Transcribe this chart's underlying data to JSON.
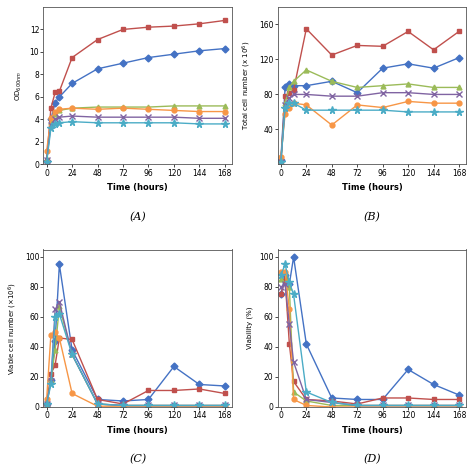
{
  "time": [
    0,
    4,
    8,
    12,
    24,
    48,
    72,
    96,
    120,
    144,
    168
  ],
  "panel_A": {
    "ylabel": "OD$_{600nm}$",
    "xlabel": "Time (hours)",
    "label": "(A)",
    "ylim": [
      0,
      14
    ],
    "yticks": [
      0,
      2,
      4,
      6,
      8,
      10,
      12
    ],
    "series": [
      {
        "color": "#4472C4",
        "marker": "D",
        "data": [
          0.3,
          4.0,
          5.5,
          6.0,
          7.2,
          8.5,
          9.0,
          9.5,
          9.8,
          10.1,
          10.3
        ]
      },
      {
        "color": "#C0504D",
        "marker": "s",
        "data": [
          0.3,
          5.0,
          6.4,
          6.5,
          9.5,
          11.1,
          12.0,
          12.2,
          12.3,
          12.5,
          12.8
        ]
      },
      {
        "color": "#9BBB59",
        "marker": "^",
        "data": [
          0.5,
          3.8,
          4.5,
          4.8,
          5.0,
          5.1,
          5.1,
          5.1,
          5.2,
          5.2,
          5.2
        ]
      },
      {
        "color": "#F79646",
        "marker": "o",
        "data": [
          1.2,
          4.1,
          4.7,
          4.9,
          5.0,
          4.9,
          5.0,
          4.9,
          4.8,
          4.7,
          4.7
        ]
      },
      {
        "color": "#8064A2",
        "marker": "x",
        "data": [
          0.4,
          3.5,
          4.0,
          4.2,
          4.3,
          4.2,
          4.2,
          4.2,
          4.2,
          4.1,
          4.1
        ]
      },
      {
        "color": "#4BACC6",
        "marker": "*",
        "data": [
          0.2,
          3.2,
          3.6,
          3.7,
          3.8,
          3.7,
          3.7,
          3.7,
          3.7,
          3.6,
          3.6
        ]
      }
    ]
  },
  "panel_B": {
    "ylabel": "Total cell number (x 10$^6$)",
    "xlabel": "Time (hours)",
    "label": "(B)",
    "ylim": [
      0,
      180
    ],
    "yticks": [
      40,
      80,
      120,
      160
    ],
    "series": [
      {
        "color": "#4472C4",
        "marker": "D",
        "data": [
          5,
          88,
          92,
          90,
          90,
          95,
          82,
          110,
          115,
          110,
          122
        ]
      },
      {
        "color": "#C0504D",
        "marker": "s",
        "data": [
          3,
          78,
          82,
          85,
          155,
          125,
          136,
          135,
          152,
          131,
          152
        ]
      },
      {
        "color": "#9BBB59",
        "marker": "^",
        "data": [
          3,
          70,
          88,
          95,
          108,
          95,
          88,
          90,
          92,
          88,
          88
        ]
      },
      {
        "color": "#F79646",
        "marker": "o",
        "data": [
          8,
          58,
          65,
          70,
          68,
          45,
          68,
          65,
          72,
          70,
          70
        ]
      },
      {
        "color": "#8064A2",
        "marker": "x",
        "data": [
          3,
          68,
          76,
          80,
          80,
          78,
          78,
          82,
          82,
          80,
          80
        ]
      },
      {
        "color": "#4BACC6",
        "marker": "*",
        "data": [
          3,
          65,
          70,
          70,
          62,
          62,
          62,
          62,
          60,
          60,
          60
        ]
      }
    ]
  },
  "panel_C": {
    "ylabel": "Viable cell number (×10$^6$)",
    "xlabel": "Time (hours)",
    "label": "(C)",
    "ylim": [
      0,
      105
    ],
    "yticks": [
      0,
      20,
      40,
      60,
      80,
      100
    ],
    "series": [
      {
        "color": "#4472C4",
        "marker": "D",
        "data": [
          2,
          18,
          44,
          95,
          38,
          5,
          4,
          5,
          27,
          15,
          14
        ]
      },
      {
        "color": "#C0504D",
        "marker": "s",
        "data": [
          2,
          22,
          28,
          46,
          45,
          5,
          2,
          11,
          11,
          12,
          9
        ]
      },
      {
        "color": "#9BBB59",
        "marker": "^",
        "data": [
          2,
          18,
          38,
          67,
          35,
          2,
          1,
          1,
          1,
          1,
          1
        ]
      },
      {
        "color": "#F79646",
        "marker": "o",
        "data": [
          5,
          48,
          50,
          46,
          9,
          0.5,
          0.5,
          0.5,
          0.5,
          0.5,
          0.5
        ]
      },
      {
        "color": "#8064A2",
        "marker": "x",
        "data": [
          2,
          17,
          65,
          70,
          35,
          2,
          1,
          1,
          1,
          1,
          1
        ]
      },
      {
        "color": "#4BACC6",
        "marker": "*",
        "data": [
          2,
          15,
          60,
          62,
          35,
          2,
          1,
          1,
          1,
          1,
          1
        ]
      }
    ]
  },
  "panel_D": {
    "ylabel": "Viability (%)",
    "xlabel": "Time (hours)",
    "label": "(D)",
    "ylim": [
      0,
      105
    ],
    "yticks": [
      0,
      20,
      40,
      60,
      80,
      100
    ],
    "series": [
      {
        "color": "#4472C4",
        "marker": "D",
        "data": [
          75,
          88,
          82,
          100,
          42,
          6,
          5,
          5,
          25,
          15,
          8
        ]
      },
      {
        "color": "#C0504D",
        "marker": "s",
        "data": [
          75,
          85,
          42,
          17,
          5,
          4,
          2,
          6,
          6,
          5,
          5
        ]
      },
      {
        "color": "#9BBB59",
        "marker": "^",
        "data": [
          85,
          90,
          80,
          10,
          4,
          1,
          1,
          1,
          1,
          1,
          1
        ]
      },
      {
        "color": "#F79646",
        "marker": "o",
        "data": [
          90,
          90,
          65,
          5,
          1,
          0,
          0,
          0,
          0,
          0,
          0
        ]
      },
      {
        "color": "#8064A2",
        "marker": "x",
        "data": [
          80,
          82,
          55,
          30,
          5,
          3,
          1,
          1,
          1,
          1,
          1
        ]
      },
      {
        "color": "#4BACC6",
        "marker": "*",
        "data": [
          88,
          95,
          83,
          75,
          10,
          3,
          1,
          1,
          1,
          1,
          1
        ]
      }
    ]
  },
  "xticks": [
    0,
    24,
    48,
    72,
    96,
    120,
    144,
    168
  ],
  "markersize": 3.5,
  "linewidth": 1.0,
  "bg_color": "#ffffff"
}
